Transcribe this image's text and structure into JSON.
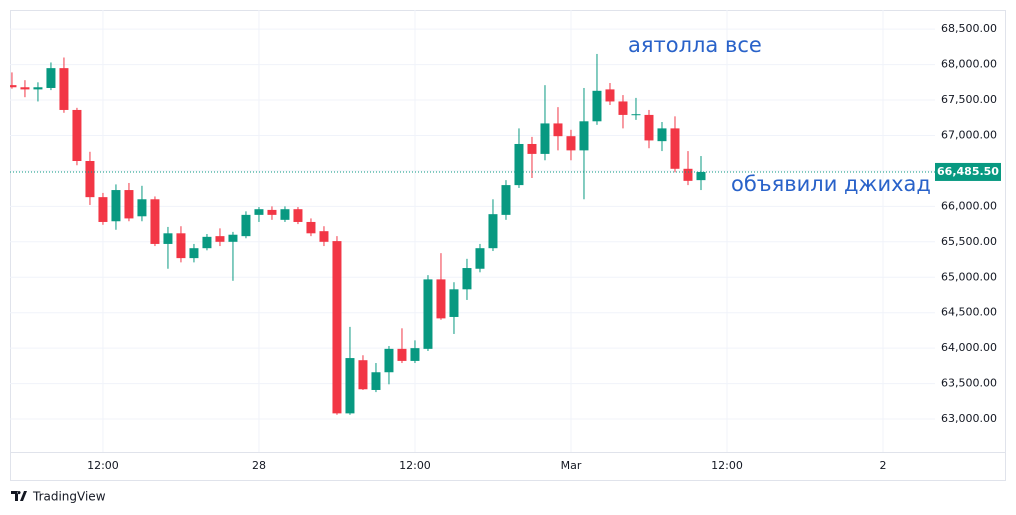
{
  "chart_data": {
    "type": "candlestick",
    "x": [
      -7,
      -6,
      -5,
      -4,
      -3,
      -2,
      -1,
      0,
      1,
      2,
      3,
      4,
      5,
      6,
      7,
      8,
      9,
      10,
      11,
      12,
      13,
      14,
      15,
      16,
      17,
      18,
      19,
      20,
      21,
      22,
      23,
      24,
      25,
      26,
      27,
      28,
      29,
      30,
      31,
      32,
      33,
      34,
      35,
      36,
      37,
      38,
      39,
      40,
      41,
      42,
      43,
      44,
      45,
      46
    ],
    "open": [
      67710,
      67680,
      67650,
      67670,
      67950,
      67360,
      66640,
      66130,
      65790,
      66230,
      65860,
      66100,
      65470,
      65620,
      65270,
      65410,
      65580,
      65500,
      65580,
      65880,
      65950,
      65810,
      65960,
      65780,
      65650,
      65510,
      63080,
      63830,
      63410,
      63660,
      63990,
      63820,
      63990,
      64970,
      64440,
      64830,
      65120,
      65410,
      65880,
      66300,
      66880,
      66740,
      67170,
      66990,
      66790,
      67200,
      67650,
      67480,
      67290,
      67290,
      66920,
      67100,
      66530,
      66370
    ],
    "high": [
      67890,
      67780,
      67750,
      68030,
      68100,
      67390,
      66770,
      66190,
      66310,
      66330,
      66290,
      66140,
      65710,
      65720,
      65470,
      65610,
      65690,
      65640,
      65930,
      65990,
      66000,
      66000,
      65990,
      65830,
      65720,
      65580,
      64300,
      63900,
      63790,
      64030,
      64280,
      64110,
      65030,
      65340,
      64930,
      65260,
      65470,
      66100,
      66370,
      67100,
      66980,
      67710,
      67400,
      67080,
      67670,
      68150,
      67740,
      67570,
      67530,
      67360,
      67190,
      67270,
      66780,
      66710
    ],
    "low": [
      67660,
      67540,
      67480,
      67640,
      67320,
      66580,
      66020,
      65740,
      65670,
      65790,
      65790,
      65440,
      65120,
      65210,
      65210,
      65380,
      65440,
      64950,
      65550,
      65780,
      65810,
      65780,
      65750,
      65580,
      65440,
      63060,
      63060,
      63410,
      63380,
      63490,
      63790,
      63790,
      63960,
      64400,
      64200,
      64680,
      65070,
      65370,
      65810,
      66260,
      66400,
      66650,
      66790,
      66650,
      66100,
      67150,
      67430,
      67100,
      67220,
      66820,
      66780,
      66480,
      66300,
      66230
    ],
    "close": [
      67680,
      67650,
      67680,
      67950,
      67360,
      66640,
      66130,
      65780,
      66230,
      65830,
      66100,
      65470,
      65620,
      65270,
      65410,
      65570,
      65500,
      65600,
      65880,
      65960,
      65880,
      65960,
      65780,
      65620,
      65500,
      63080,
      63860,
      63420,
      63660,
      63990,
      63820,
      64000,
      64970,
      64420,
      64830,
      65130,
      65410,
      65890,
      66300,
      66880,
      66740,
      67170,
      66990,
      66790,
      67200,
      67630,
      67480,
      67290,
      67300,
      66930,
      67100,
      66530,
      66360,
      66485.5
    ],
    "up_color": "#089981",
    "down_color": "#f23645",
    "xlim": [
      -7.15,
      64
    ],
    "xticks": [
      {
        "value": 0,
        "label": "12:00"
      },
      {
        "value": 12,
        "label": "28"
      },
      {
        "value": 24,
        "label": "12:00"
      },
      {
        "value": 36,
        "label": "Mar"
      },
      {
        "value": 48,
        "label": "12:00"
      },
      {
        "value": 60,
        "label": "2"
      }
    ],
    "ylim": [
      62535,
      68770
    ],
    "yticks": [
      {
        "value": 63000,
        "label": "63,000.00"
      },
      {
        "value": 63500,
        "label": "63,500.00"
      },
      {
        "value": 64000,
        "label": "64,000.00"
      },
      {
        "value": 64500,
        "label": "64,500.00"
      },
      {
        "value": 65000,
        "label": "65,000.00"
      },
      {
        "value": 65500,
        "label": "65,500.00"
      },
      {
        "value": 66000,
        "label": "66,000.00"
      },
      {
        "value": 66500,
        "label": "66,500.00"
      },
      {
        "value": 67000,
        "label": "67,000.00"
      },
      {
        "value": 67500,
        "label": "67,500.00"
      },
      {
        "value": 68000,
        "label": "68,000.00"
      },
      {
        "value": 68500,
        "label": "68,500.00"
      }
    ],
    "grid": true,
    "last_price": {
      "value": 66485.5,
      "label": "66,485.50"
    },
    "annotations": [
      "аятолла все",
      "объявили джихад"
    ],
    "brand": "TradingView"
  }
}
